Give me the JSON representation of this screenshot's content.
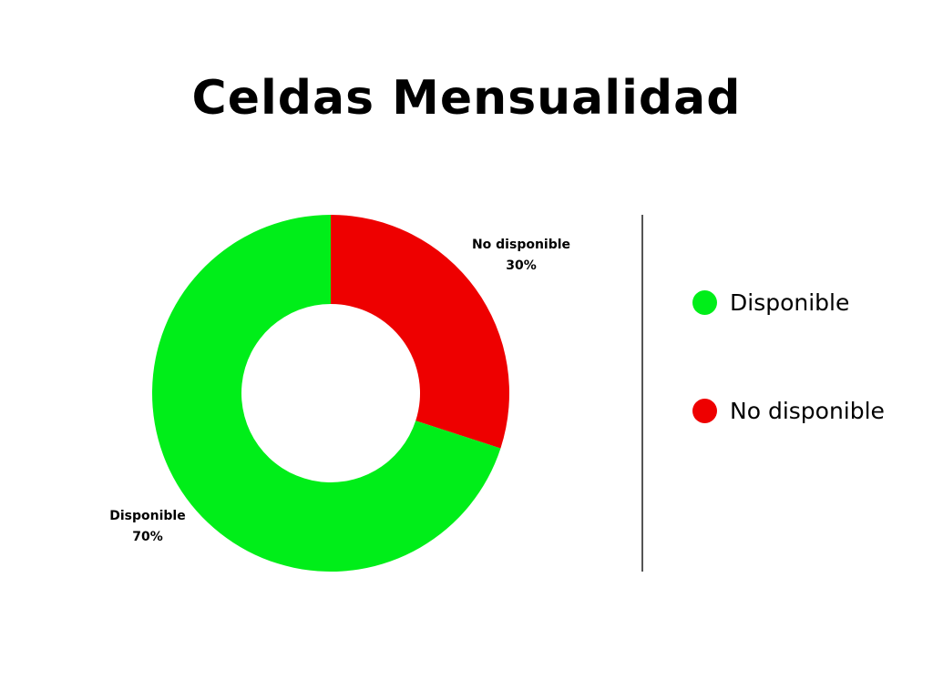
{
  "chart_data": {
    "type": "pie",
    "style": "donut",
    "title": "Celdas Mensualidad",
    "categories": [
      "Disponible",
      "No disponible"
    ],
    "values": [
      70,
      30
    ],
    "value_labels": [
      "70%",
      "30%"
    ],
    "colors": [
      "#00ee19",
      "#ee0000"
    ],
    "start_angle_deg": 0,
    "direction": "clockwise-from-top",
    "legend": {
      "placement": "right",
      "entries": [
        "Disponible",
        "No disponible"
      ]
    }
  }
}
